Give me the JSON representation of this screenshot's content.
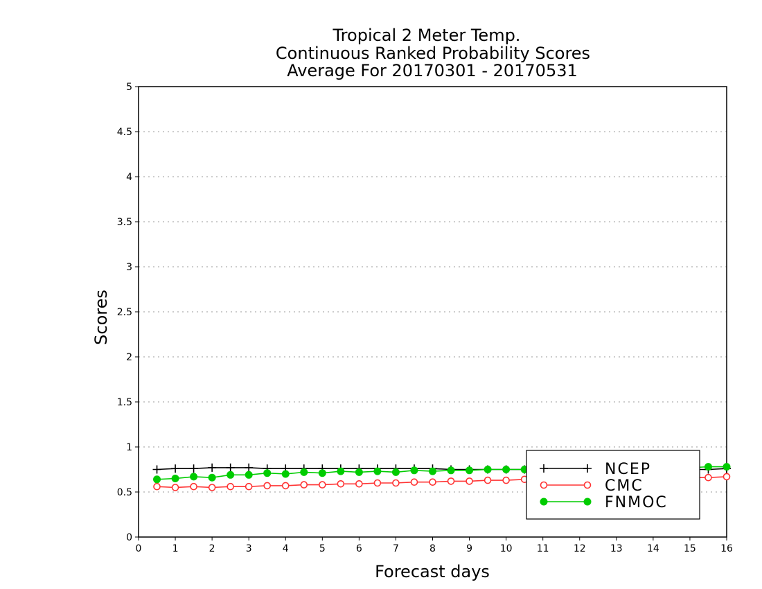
{
  "chart_data": {
    "type": "line",
    "title": [
      "Tropical 2 Meter Temp.",
      "Continuous Ranked Probability Scores",
      "Average For 20170301 - 20170531"
    ],
    "xlabel": "Forecast days",
    "ylabel": "Scores",
    "xlim": [
      0,
      16
    ],
    "ylim": [
      0,
      5
    ],
    "xticks": [
      "0",
      "1",
      "2",
      "3",
      "4",
      "5",
      "6",
      "7",
      "8",
      "9",
      "10",
      "11",
      "12",
      "13",
      "14",
      "15",
      "16"
    ],
    "yticks": [
      "0",
      "0.5",
      "1",
      "1.5",
      "2",
      "2.5",
      "3",
      "3.5",
      "4",
      "4.5",
      "5"
    ],
    "grid": "horizontal-dotted",
    "legend_position": "bottom-right",
    "x": [
      0.5,
      1,
      1.5,
      2,
      2.5,
      3,
      3.5,
      4,
      4.5,
      5,
      5.5,
      6,
      6.5,
      7,
      7.5,
      8,
      8.5,
      9,
      9.5,
      10,
      10.5,
      11,
      11.5,
      12,
      12.5,
      13,
      13.5,
      14,
      14.5,
      15,
      15.5,
      16
    ],
    "series": [
      {
        "name": "NCEP",
        "color": "#000000",
        "marker": "plus",
        "values": [
          0.75,
          0.76,
          0.76,
          0.77,
          0.77,
          0.77,
          0.76,
          0.76,
          0.76,
          0.76,
          0.76,
          0.76,
          0.76,
          0.76,
          0.76,
          0.76,
          0.75,
          0.75,
          0.75,
          0.75,
          0.75,
          0.75,
          0.75,
          0.75,
          0.75,
          0.75,
          0.75,
          0.75,
          0.75,
          0.75,
          0.75,
          0.76
        ]
      },
      {
        "name": "CMC",
        "color": "#ff3333",
        "marker": "open-circle",
        "values": [
          0.56,
          0.55,
          0.56,
          0.55,
          0.56,
          0.56,
          0.57,
          0.57,
          0.58,
          0.58,
          0.59,
          0.59,
          0.6,
          0.6,
          0.61,
          0.61,
          0.62,
          0.62,
          0.63,
          0.63,
          0.64,
          0.64,
          0.64,
          0.65,
          0.65,
          0.65,
          0.65,
          0.66,
          0.66,
          0.66,
          0.66,
          0.67
        ]
      },
      {
        "name": "FNMOC",
        "color": "#00cc00",
        "marker": "filled-circle",
        "values": [
          0.64,
          0.65,
          0.67,
          0.66,
          0.69,
          0.69,
          0.71,
          0.7,
          0.72,
          0.71,
          0.73,
          0.72,
          0.73,
          0.72,
          0.74,
          0.73,
          0.74,
          0.74,
          0.75,
          0.75,
          0.75,
          0.75,
          0.76,
          0.76,
          0.76,
          0.76,
          0.77,
          0.77,
          0.77,
          0.77,
          0.78,
          0.78
        ]
      }
    ]
  }
}
